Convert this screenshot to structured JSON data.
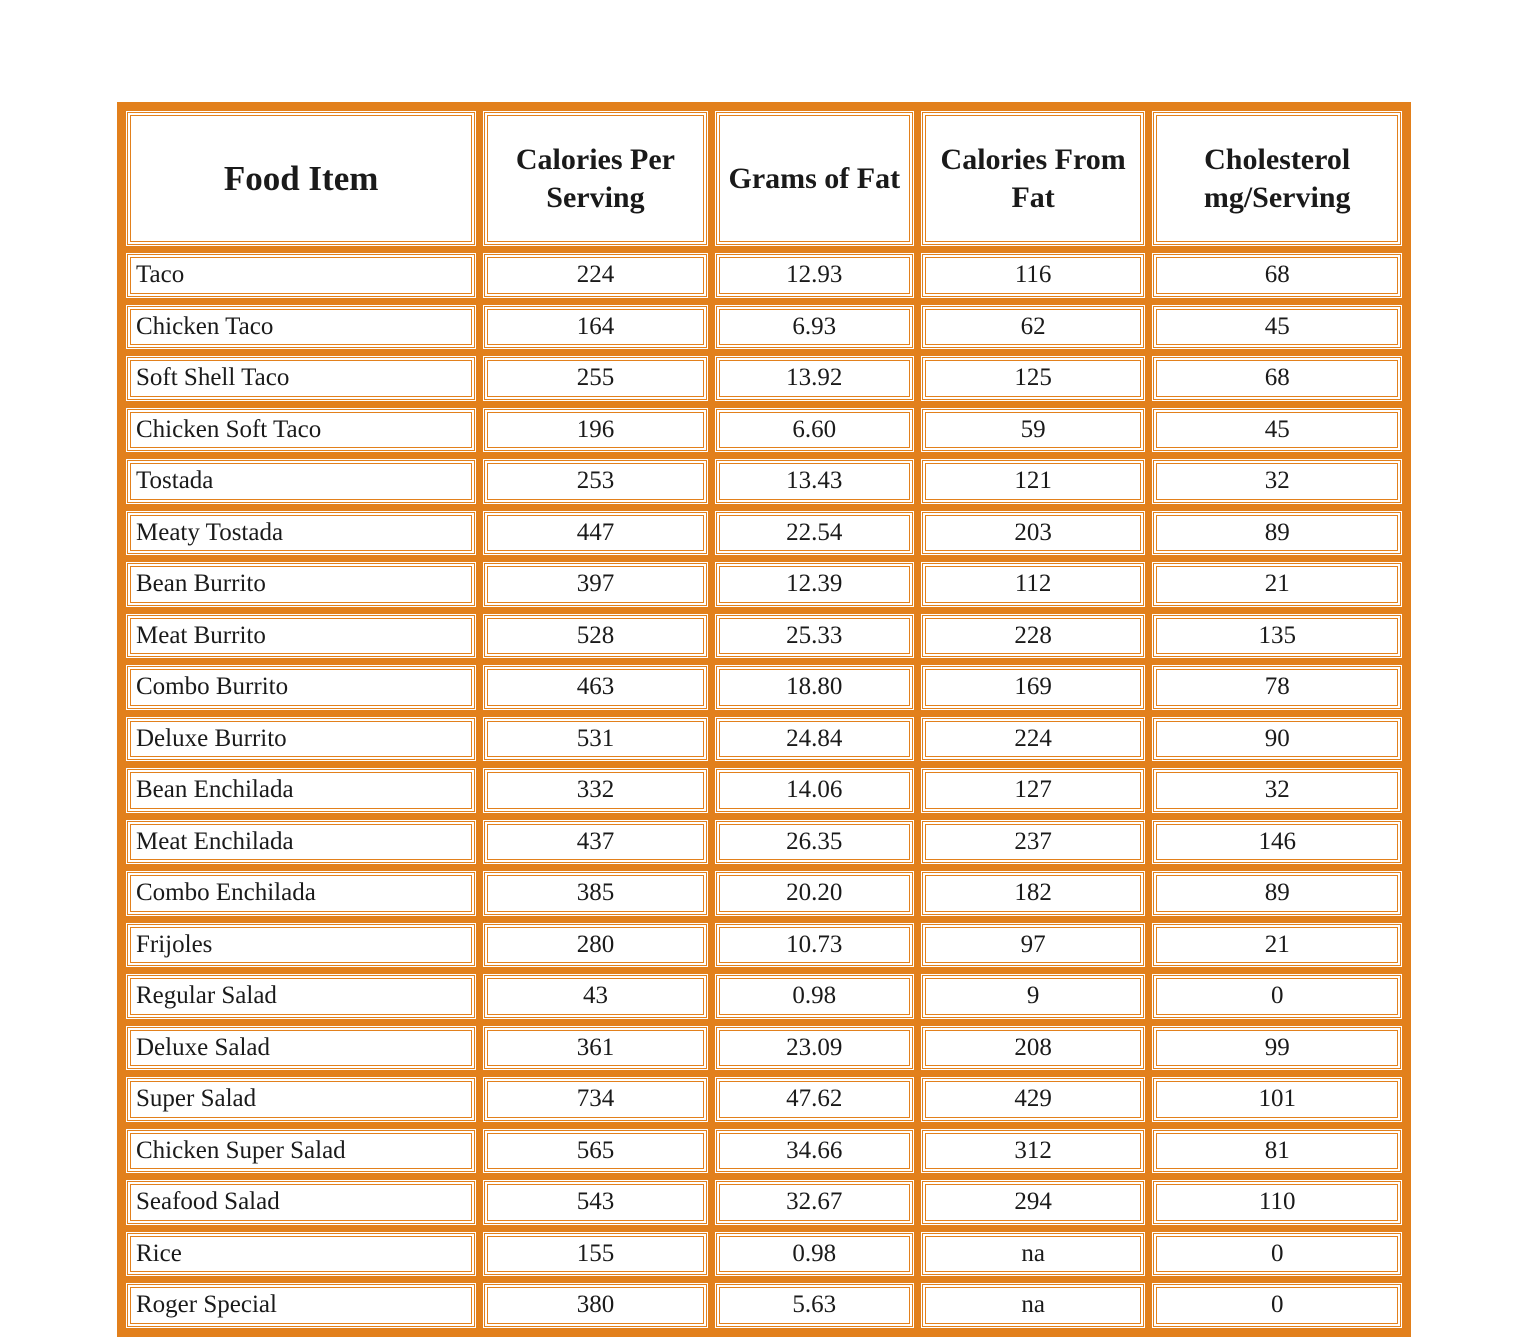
{
  "table": {
    "border_color": "#e2801c",
    "background_color": "#ffffff",
    "text_color": "#1a1a1a",
    "font_family": "Georgia, Times New Roman, serif",
    "header_fontsize_main": 35,
    "header_fontsize": 30,
    "body_fontsize": 25,
    "cell_border_style": "double",
    "columns": [
      {
        "label": "Food Item",
        "align": "left",
        "width_pct": 28
      },
      {
        "label": "Calories Per Serving",
        "align": "center",
        "width_pct": 18
      },
      {
        "label": "Grams of Fat",
        "align": "center",
        "width_pct": 16
      },
      {
        "label": "Calories From Fat",
        "align": "center",
        "width_pct": 18
      },
      {
        "label": "Cholesterol mg/Serving",
        "align": "center",
        "width_pct": 20
      }
    ],
    "rows": [
      {
        "name": "Taco",
        "cal": "224",
        "fat_g": "12.93",
        "cal_fat": "116",
        "chol": "68"
      },
      {
        "name": "Chicken Taco",
        "cal": "164",
        "fat_g": "6.93",
        "cal_fat": "62",
        "chol": "45"
      },
      {
        "name": "Soft Shell Taco",
        "cal": "255",
        "fat_g": "13.92",
        "cal_fat": "125",
        "chol": "68"
      },
      {
        "name": "Chicken Soft Taco",
        "cal": "196",
        "fat_g": "6.60",
        "cal_fat": "59",
        "chol": "45"
      },
      {
        "name": "Tostada",
        "cal": "253",
        "fat_g": "13.43",
        "cal_fat": "121",
        "chol": "32"
      },
      {
        "name": "Meaty Tostada",
        "cal": "447",
        "fat_g": "22.54",
        "cal_fat": "203",
        "chol": "89"
      },
      {
        "name": "Bean Burrito",
        "cal": "397",
        "fat_g": "12.39",
        "cal_fat": "112",
        "chol": "21"
      },
      {
        "name": "Meat Burrito",
        "cal": "528",
        "fat_g": "25.33",
        "cal_fat": "228",
        "chol": "135"
      },
      {
        "name": "Combo Burrito",
        "cal": "463",
        "fat_g": "18.80",
        "cal_fat": "169",
        "chol": "78"
      },
      {
        "name": "Deluxe Burrito",
        "cal": "531",
        "fat_g": "24.84",
        "cal_fat": "224",
        "chol": "90"
      },
      {
        "name": "Bean Enchilada",
        "cal": "332",
        "fat_g": "14.06",
        "cal_fat": "127",
        "chol": "32"
      },
      {
        "name": "Meat Enchilada",
        "cal": "437",
        "fat_g": "26.35",
        "cal_fat": "237",
        "chol": "146"
      },
      {
        "name": "Combo Enchilada",
        "cal": "385",
        "fat_g": "20.20",
        "cal_fat": "182",
        "chol": "89"
      },
      {
        "name": "Frijoles",
        "cal": "280",
        "fat_g": "10.73",
        "cal_fat": "97",
        "chol": "21"
      },
      {
        "name": "Regular Salad",
        "cal": "43",
        "fat_g": "0.98",
        "cal_fat": "9",
        "chol": "0"
      },
      {
        "name": "Deluxe Salad",
        "cal": "361",
        "fat_g": "23.09",
        "cal_fat": "208",
        "chol": "99"
      },
      {
        "name": "Super Salad",
        "cal": "734",
        "fat_g": "47.62",
        "cal_fat": "429",
        "chol": "101"
      },
      {
        "name": "Chicken Super Salad",
        "cal": "565",
        "fat_g": "34.66",
        "cal_fat": "312",
        "chol": "81"
      },
      {
        "name": "Seafood Salad",
        "cal": "543",
        "fat_g": "32.67",
        "cal_fat": "294",
        "chol": "110"
      },
      {
        "name": "Rice",
        "cal": "155",
        "fat_g": "0.98",
        "cal_fat": "na",
        "chol": "0"
      },
      {
        "name": "Roger Special",
        "cal": "380",
        "fat_g": "5.63",
        "cal_fat": "na",
        "chol": "0"
      }
    ]
  }
}
